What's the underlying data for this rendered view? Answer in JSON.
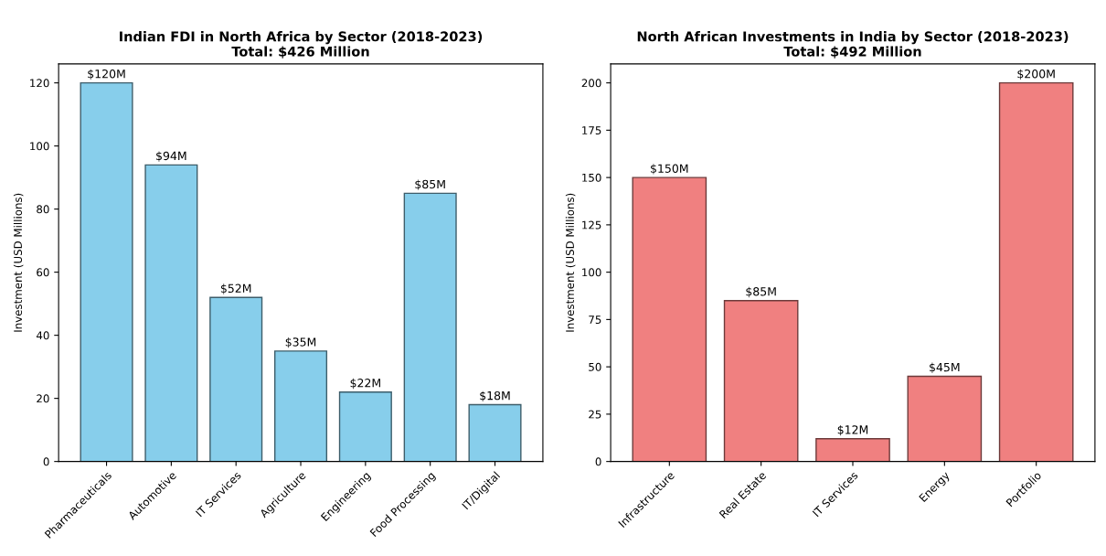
{
  "chart_data": [
    {
      "type": "bar",
      "title": "Indian FDI in North Africa by Sector (2018-2023)\nTotal: $426 Million",
      "ylabel": "Investment (USD Millions)",
      "categories": [
        "Pharmaceuticals",
        "Automotive",
        "IT Services",
        "Agriculture",
        "Engineering",
        "Food Processing",
        "IT/Digital"
      ],
      "values": [
        120,
        94,
        52,
        35,
        22,
        85,
        18
      ],
      "color": "#87ceeb",
      "value_labels": [
        "$120M",
        "$94M",
        "$52M",
        "$35M",
        "$22M",
        "$85M",
        "$18M"
      ],
      "ylim": [
        0,
        126
      ],
      "yticks": [
        0,
        20,
        40,
        60,
        80,
        100,
        120
      ],
      "grid": false
    },
    {
      "type": "bar",
      "title": "North African Investments in India by Sector (2018-2023)\nTotal: $492 Million",
      "ylabel": "Investment (USD Millions)",
      "categories": [
        "Infrastructure",
        "Real Estate",
        "IT Services",
        "Energy",
        "Portfolio"
      ],
      "values": [
        150,
        85,
        12,
        45,
        200
      ],
      "color": "#f08080",
      "value_labels": [
        "$150M",
        "$85M",
        "$12M",
        "$45M",
        "$200M"
      ],
      "ylim": [
        0,
        210
      ],
      "yticks": [
        0,
        25,
        50,
        75,
        100,
        125,
        150,
        175,
        200
      ],
      "grid": false
    }
  ]
}
